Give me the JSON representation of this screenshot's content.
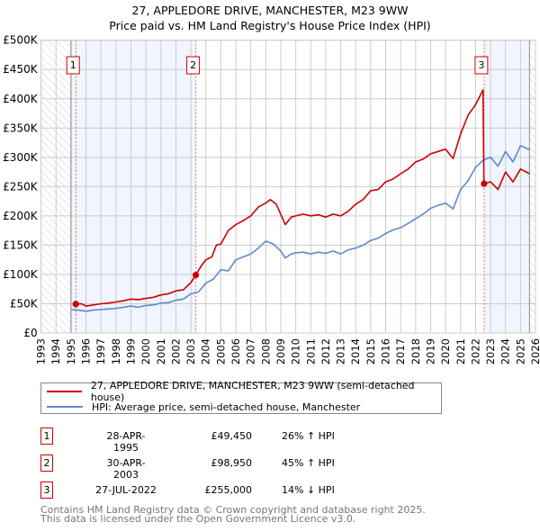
{
  "chart_data": {
    "type": "line",
    "title": "27, APPLEDORE DRIVE, MANCHESTER, M23 9WW",
    "subtitle": "Price paid vs. HM Land Registry's House Price Index (HPI)",
    "xlim": [
      1993,
      2026
    ],
    "ylim": [
      0,
      500000
    ],
    "x_ticks": [
      "1993",
      "1994",
      "1995",
      "1996",
      "1997",
      "1998",
      "1999",
      "2000",
      "2001",
      "2002",
      "2003",
      "2004",
      "2005",
      "2006",
      "2007",
      "2008",
      "2009",
      "2010",
      "2011",
      "2012",
      "2013",
      "2014",
      "2015",
      "2016",
      "2017",
      "2018",
      "2019",
      "2020",
      "2021",
      "2022",
      "2023",
      "2024",
      "2025",
      "2026"
    ],
    "y_ticks": [
      {
        "value": 0,
        "label": "£0"
      },
      {
        "value": 50000,
        "label": "£50K"
      },
      {
        "value": 100000,
        "label": "£100K"
      },
      {
        "value": 150000,
        "label": "£150K"
      },
      {
        "value": 200000,
        "label": "£200K"
      },
      {
        "value": 250000,
        "label": "£250K"
      },
      {
        "value": 300000,
        "label": "£300K"
      },
      {
        "value": 350000,
        "label": "£350K"
      },
      {
        "value": 400000,
        "label": "£400K"
      },
      {
        "value": 450000,
        "label": "£450K"
      },
      {
        "value": 500000,
        "label": "£500K"
      }
    ],
    "grid": true,
    "series": [
      {
        "name": "27, APPLEDORE DRIVE, MANCHESTER, M23 9WW (semi-detached house)",
        "color": "#cc0000",
        "x": [
          1995.32,
          1995.7,
          1996,
          1996.5,
          1997,
          1997.5,
          1998,
          1998.5,
          1999,
          1999.5,
          2000,
          2000.5,
          2001,
          2001.5,
          2002,
          2002.5,
          2003,
          2003.33,
          2003.7,
          2004,
          2004.4,
          2004.7,
          2005,
          2005.5,
          2006,
          2006.5,
          2007,
          2007.5,
          2008,
          2008.3,
          2008.7,
          2009.3,
          2009.7,
          2010,
          2010.5,
          2011,
          2011.5,
          2012,
          2012.5,
          2013,
          2013.5,
          2014,
          2014.5,
          2015,
          2015.5,
          2016,
          2016.5,
          2017,
          2017.5,
          2018,
          2018.5,
          2019,
          2019.5,
          2020,
          2020.5,
          2021,
          2021.5,
          2022,
          2022.5,
          2022.56,
          2023,
          2023.5,
          2024,
          2024.5,
          2025,
          2025.6
        ],
        "y": [
          49450,
          50000,
          46000,
          48000,
          50000,
          51000,
          53000,
          55000,
          58000,
          57000,
          59000,
          61000,
          65000,
          67000,
          72000,
          74000,
          86000,
          98950,
          115000,
          125000,
          130000,
          150000,
          152000,
          175000,
          185000,
          192000,
          200000,
          215000,
          222000,
          228000,
          220000,
          185000,
          198000,
          200000,
          203000,
          200000,
          202000,
          198000,
          203000,
          200000,
          208000,
          220000,
          228000,
          243000,
          245000,
          258000,
          263000,
          272000,
          280000,
          292000,
          297000,
          306000,
          310000,
          314000,
          298000,
          340000,
          372000,
          390000,
          415000,
          255000,
          258000,
          245000,
          275000,
          258000,
          280000,
          272000
        ]
      },
      {
        "name": "HPI: Average price, semi-detached house, Manchester",
        "color": "#5b8ccf",
        "x": [
          1995,
          1995.5,
          1996,
          1996.5,
          1997,
          1997.5,
          1998,
          1998.5,
          1999,
          1999.5,
          2000,
          2000.5,
          2001,
          2001.5,
          2002,
          2002.5,
          2003,
          2003.5,
          2004,
          2004.5,
          2005,
          2005.5,
          2006,
          2006.5,
          2007,
          2007.5,
          2008,
          2008.5,
          2009,
          2009.3,
          2009.7,
          2010,
          2010.5,
          2011,
          2011.5,
          2012,
          2012.5,
          2013,
          2013.5,
          2014,
          2014.5,
          2015,
          2015.5,
          2016,
          2016.5,
          2017,
          2017.5,
          2018,
          2018.5,
          2019,
          2019.5,
          2020,
          2020.5,
          2021,
          2021.5,
          2022,
          2022.5,
          2023,
          2023.5,
          2024,
          2024.5,
          2025,
          2025.6
        ],
        "y": [
          40000,
          39000,
          37000,
          39000,
          40000,
          41000,
          42000,
          44000,
          46000,
          44000,
          47000,
          48000,
          51000,
          52000,
          56000,
          58000,
          67000,
          70000,
          85000,
          92000,
          108000,
          106000,
          125000,
          130000,
          135000,
          145000,
          157000,
          152000,
          140000,
          128000,
          135000,
          137000,
          138000,
          135000,
          138000,
          136000,
          140000,
          135000,
          142000,
          145000,
          150000,
          158000,
          162000,
          170000,
          176000,
          180000,
          187000,
          195000,
          203000,
          213000,
          218000,
          222000,
          212000,
          245000,
          260000,
          283000,
          295000,
          300000,
          285000,
          310000,
          292000,
          320000,
          313000
        ]
      }
    ],
    "sales": [
      {
        "id": "1",
        "x": 1995.32,
        "y": 49450
      },
      {
        "id": "2",
        "x": 2003.33,
        "y": 98950
      },
      {
        "id": "3",
        "x": 2022.57,
        "y": 255000
      }
    ],
    "legend_placement": "bottom"
  },
  "table": [
    {
      "id": "1",
      "date": "28-APR-1995",
      "price": "£49,450",
      "hpi": "26% ↑ HPI"
    },
    {
      "id": "2",
      "date": "30-APR-2003",
      "price": "£98,950",
      "hpi": "45% ↑ HPI"
    },
    {
      "id": "3",
      "date": "27-JUL-2022",
      "price": "£255,000",
      "hpi": "14% ↓ HPI"
    }
  ],
  "footer": {
    "line1": "Contains HM Land Registry data © Crown copyright and database right 2025.",
    "line2": "This data is licensed under the Open Government Licence v3.0."
  }
}
